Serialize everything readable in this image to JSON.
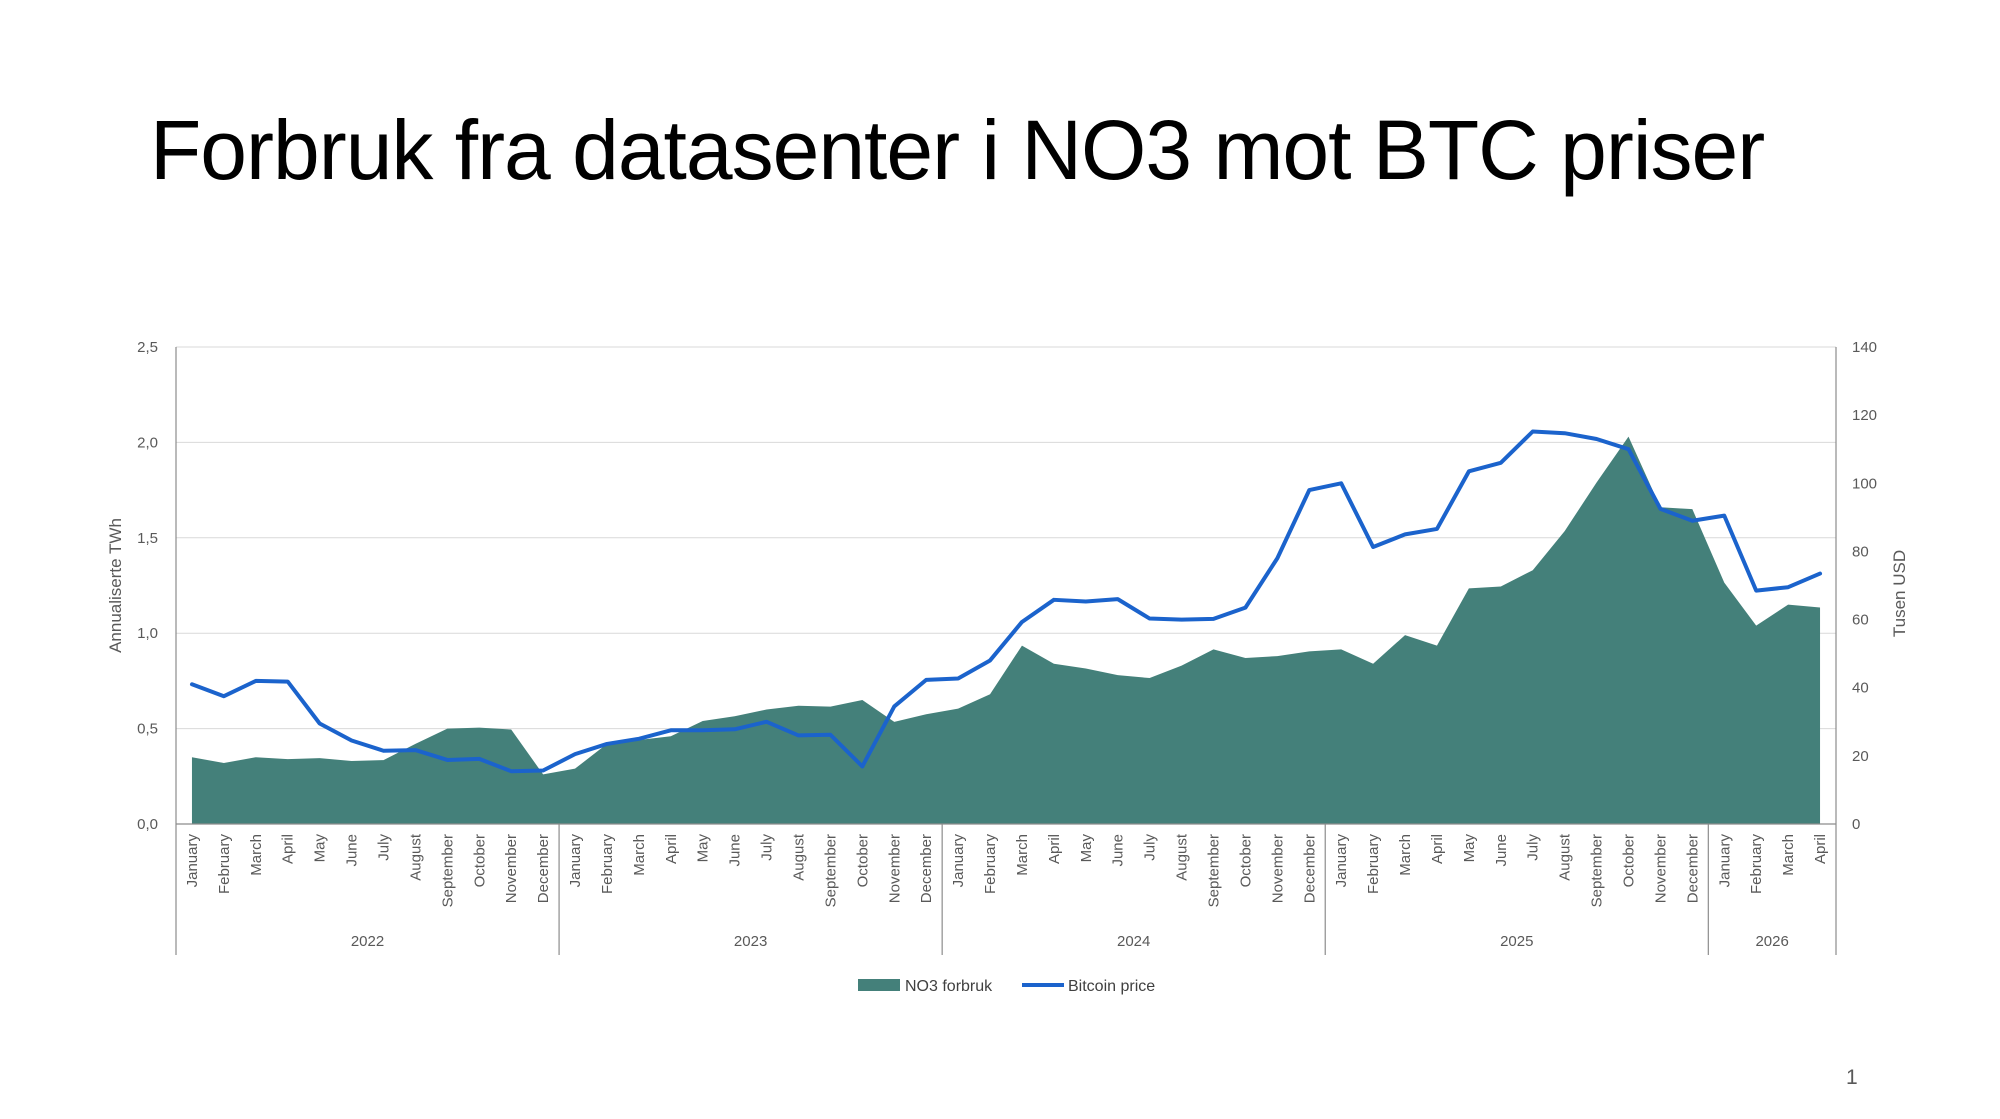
{
  "slide": {
    "title": "Forbruk fra datasenter i NO3 mot BTC priser",
    "page_number": "1"
  },
  "colors": {
    "area": "#44807A",
    "line": "#1B63CC",
    "grid": "#D9D9D9",
    "axis": "#8C8C8C",
    "text": "#595959"
  },
  "chart_data": {
    "type": "area",
    "ylabel": "Annualiserte TWh",
    "y2label": "Tusen USD",
    "ylim": [
      0,
      2.5
    ],
    "y2lim": [
      0,
      140
    ],
    "y_ticks": [
      "0,0",
      "0,5",
      "1,0",
      "1,5",
      "2,0",
      "2,5"
    ],
    "y2_ticks": [
      "0",
      "20",
      "40",
      "60",
      "80",
      "100",
      "120",
      "140"
    ],
    "grid": true,
    "legend_position": "bottom",
    "years": [
      {
        "label": "2022",
        "months": 12
      },
      {
        "label": "2023",
        "months": 12
      },
      {
        "label": "2024",
        "months": 12
      },
      {
        "label": "2025",
        "months": 12
      },
      {
        "label": "2026",
        "months": 4
      }
    ],
    "categories": [
      "January",
      "February",
      "March",
      "April",
      "May",
      "June",
      "July",
      "August",
      "September",
      "October",
      "November",
      "December",
      "January",
      "February",
      "March",
      "April",
      "May",
      "June",
      "July",
      "August",
      "September",
      "October",
      "November",
      "December",
      "January",
      "February",
      "March",
      "April",
      "May",
      "June",
      "July",
      "August",
      "September",
      "October",
      "November",
      "December",
      "January",
      "February",
      "March",
      "April",
      "May",
      "June",
      "July",
      "August",
      "September",
      "October",
      "November",
      "December",
      "January",
      "February",
      "March",
      "April"
    ],
    "series": [
      {
        "name": "NO3 forbruk",
        "type": "area",
        "axis": "left",
        "values": [
          0.35,
          0.32,
          0.35,
          0.34,
          0.345,
          0.33,
          0.335,
          0.42,
          0.5,
          0.505,
          0.495,
          0.26,
          0.29,
          0.42,
          0.44,
          0.46,
          0.54,
          0.565,
          0.6,
          0.62,
          0.615,
          0.65,
          0.535,
          0.575,
          0.605,
          0.68,
          0.935,
          0.84,
          0.815,
          0.78,
          0.765,
          0.83,
          0.915,
          0.87,
          0.88,
          0.905,
          0.915,
          0.84,
          0.99,
          0.935,
          1.235,
          1.245,
          1.33,
          1.535,
          1.79,
          2.03,
          1.66,
          1.65,
          1.265,
          1.04,
          1.15,
          1.135
        ]
      },
      {
        "name": "Bitcoin price",
        "type": "line",
        "axis": "right",
        "values": [
          41,
          37.5,
          42,
          41.8,
          29.5,
          24.5,
          21.5,
          21.7,
          18.8,
          19.1,
          15.5,
          15.7,
          20.5,
          23.5,
          25,
          27.5,
          27.5,
          27.8,
          30,
          26,
          26.2,
          16.9,
          34.5,
          42.3,
          42.7,
          48,
          59.3,
          65.8,
          65.3,
          66,
          60.3,
          60,
          60.2,
          63.5,
          78,
          98,
          100,
          81.3,
          85,
          86.6,
          103.5,
          106,
          115.2,
          114.7,
          113,
          110,
          92.5,
          89,
          90.5,
          68.5,
          69.5,
          73.5
        ]
      }
    ]
  }
}
